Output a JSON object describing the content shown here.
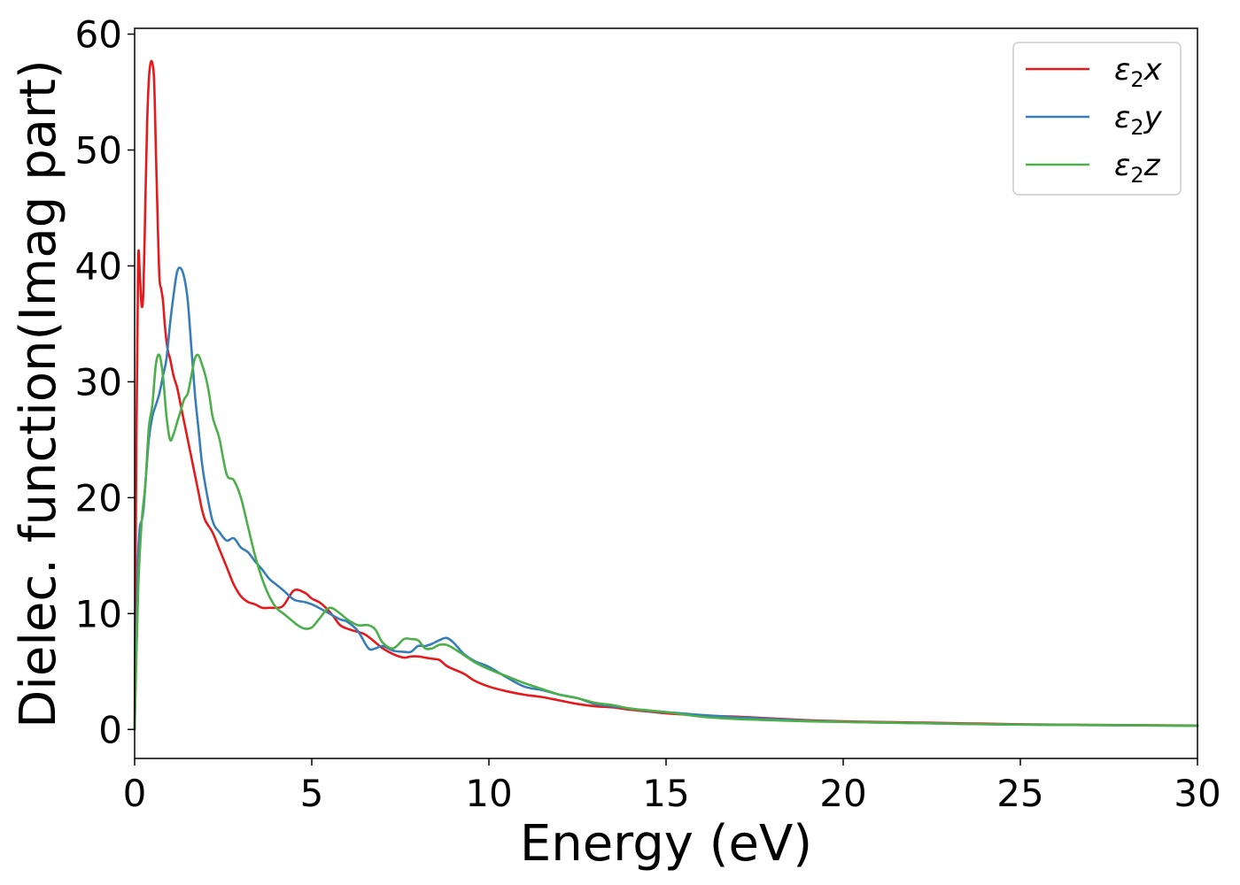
{
  "chart_data": {
    "type": "line",
    "title": "",
    "xlabel": "Energy (eV)",
    "ylabel": "Dielec. function(Imag part)",
    "xlim": [
      0,
      30
    ],
    "ylim": [
      -2.5,
      60.5
    ],
    "xticks": [
      0,
      5,
      10,
      15,
      20,
      25,
      30
    ],
    "yticks": [
      0,
      10,
      20,
      30,
      40,
      50,
      60
    ],
    "grid": false,
    "legend_position": "top-right",
    "series": [
      {
        "name": "ε2x",
        "legend_base": "ε",
        "legend_sub": "2",
        "legend_suffix": "x",
        "color": "#e41a1c",
        "x": [
          0,
          0.05,
          0.1,
          0.15,
          0.2,
          0.25,
          0.3,
          0.35,
          0.4,
          0.45,
          0.5,
          0.55,
          0.6,
          0.65,
          0.7,
          0.75,
          0.8,
          0.85,
          0.9,
          0.95,
          1.0,
          1.1,
          1.2,
          1.3,
          1.4,
          1.5,
          1.6,
          1.7,
          1.8,
          1.9,
          2.0,
          2.2,
          2.4,
          2.6,
          2.8,
          3.0,
          3.2,
          3.4,
          3.6,
          3.8,
          4.0,
          4.2,
          4.5,
          4.8,
          5.0,
          5.2,
          5.4,
          5.6,
          5.8,
          6.0,
          6.2,
          6.5,
          6.8,
          7.0,
          7.3,
          7.6,
          7.8,
          8.0,
          8.2,
          8.4,
          8.6,
          8.8,
          9.0,
          9.3,
          9.6,
          10.0,
          10.5,
          11.0,
          11.5,
          12.0,
          12.5,
          13.0,
          13.5,
          14.0,
          15.0,
          16.0,
          17.0,
          18.0,
          19.0,
          20.0,
          21.0,
          22.0,
          23.0,
          24.0,
          25.0,
          26.0,
          27.0,
          28.0,
          29.0,
          30.0
        ],
        "values": [
          0,
          25,
          40.5,
          39,
          36.5,
          38,
          45,
          52,
          56,
          57.5,
          57.5,
          56,
          50,
          44,
          39,
          38,
          37,
          35,
          33.5,
          32.5,
          32,
          30.5,
          29.5,
          28,
          26.5,
          25,
          23.5,
          22,
          20.5,
          19,
          18,
          17,
          15.5,
          14,
          12.5,
          11.5,
          11,
          10.8,
          10.5,
          10.5,
          10.5,
          10.7,
          12,
          11.8,
          11.3,
          11,
          10.5,
          9.8,
          9,
          8.7,
          8.5,
          8.2,
          7.5,
          7,
          6.5,
          6.2,
          6.3,
          6.3,
          6.2,
          6.1,
          6.0,
          5.5,
          5.2,
          4.8,
          4.2,
          3.7,
          3.3,
          3.0,
          2.8,
          2.5,
          2.2,
          2.0,
          1.9,
          1.7,
          1.4,
          1.2,
          1.1,
          0.95,
          0.8,
          0.7,
          0.65,
          0.6,
          0.55,
          0.5,
          0.45,
          0.42,
          0.4,
          0.38,
          0.36,
          0.34
        ]
      },
      {
        "name": "ε2y",
        "legend_base": "ε",
        "legend_sub": "2",
        "legend_suffix": "y",
        "color": "#377eb8",
        "x": [
          0,
          0.05,
          0.1,
          0.15,
          0.2,
          0.25,
          0.3,
          0.4,
          0.5,
          0.6,
          0.7,
          0.8,
          0.9,
          1.0,
          1.1,
          1.2,
          1.3,
          1.4,
          1.5,
          1.6,
          1.7,
          1.8,
          1.9,
          2.0,
          2.2,
          2.4,
          2.6,
          2.8,
          3.0,
          3.2,
          3.4,
          3.6,
          3.8,
          4.0,
          4.2,
          4.5,
          4.8,
          5.0,
          5.2,
          5.5,
          5.8,
          6.0,
          6.3,
          6.6,
          6.8,
          7.0,
          7.3,
          7.6,
          7.8,
          8.0,
          8.2,
          8.4,
          8.6,
          8.8,
          9.0,
          9.3,
          9.6,
          10.0,
          10.5,
          11.0,
          11.5,
          12.0,
          12.5,
          13.0,
          13.5,
          14.0,
          14.5,
          15.0,
          16.0,
          17.0,
          18.0,
          19.0,
          20.0,
          21.0,
          22.0,
          23.0,
          24.0,
          25.0,
          26.0,
          27.0,
          28.0,
          29.0,
          30.0
        ],
        "values": [
          0,
          8,
          15,
          17.5,
          18,
          19,
          21,
          25,
          27,
          28,
          29,
          30.5,
          32,
          35,
          37.5,
          39.5,
          39.8,
          39,
          37,
          33,
          29,
          26,
          23,
          21,
          18,
          17,
          16.3,
          16.5,
          15.7,
          15.3,
          14.5,
          13.8,
          13,
          12.5,
          12,
          11.2,
          11,
          10.8,
          10.5,
          10,
          9.5,
          9.3,
          8.5,
          7.0,
          7.0,
          7.2,
          6.8,
          6.7,
          6.7,
          7.2,
          7.2,
          7.4,
          7.7,
          7.9,
          7.5,
          6.5,
          5.9,
          5.4,
          4.5,
          3.7,
          3.4,
          3.0,
          2.7,
          2.2,
          2.0,
          1.8,
          1.6,
          1.5,
          1.25,
          1.05,
          0.9,
          0.75,
          0.65,
          0.6,
          0.55,
          0.5,
          0.45,
          0.42,
          0.4,
          0.38,
          0.36,
          0.34,
          0.32
        ]
      },
      {
        "name": "ε2z",
        "legend_base": "ε",
        "legend_sub": "2",
        "legend_suffix": "z",
        "color": "#4daf4a",
        "x": [
          0,
          0.1,
          0.2,
          0.3,
          0.4,
          0.5,
          0.6,
          0.7,
          0.8,
          0.9,
          1.0,
          1.1,
          1.2,
          1.3,
          1.4,
          1.5,
          1.6,
          1.7,
          1.8,
          1.9,
          2.0,
          2.1,
          2.2,
          2.3,
          2.4,
          2.6,
          2.8,
          3.0,
          3.2,
          3.4,
          3.6,
          3.8,
          4.0,
          4.2,
          4.4,
          4.6,
          4.8,
          5.0,
          5.2,
          5.5,
          5.8,
          6.0,
          6.3,
          6.6,
          6.8,
          7.0,
          7.3,
          7.6,
          7.8,
          8.0,
          8.2,
          8.4,
          8.6,
          8.8,
          9.0,
          9.3,
          9.6,
          10.0,
          10.5,
          11.0,
          11.5,
          12.0,
          12.5,
          13.0,
          13.5,
          14.0,
          15.0,
          16.0,
          17.0,
          18.0,
          19.0,
          20.0,
          21.0,
          22.0,
          23.0,
          24.0,
          25.0,
          26.0,
          27.0,
          28.0,
          29.0,
          30.0
        ],
        "values": [
          0,
          12,
          18,
          21,
          26,
          28,
          31.5,
          32.3,
          30.5,
          27,
          25,
          25.5,
          26.5,
          27.5,
          28.5,
          29,
          30.5,
          32,
          32.3,
          31.5,
          30.5,
          29,
          27,
          26,
          25,
          22,
          21.5,
          20,
          17.5,
          15,
          13,
          11.5,
          10.5,
          10,
          9.5,
          9,
          8.7,
          8.8,
          9.5,
          10.5,
          10,
          9.5,
          9.0,
          9.0,
          8.6,
          7.5,
          7.0,
          7.8,
          7.8,
          7.7,
          7.0,
          7.0,
          7.3,
          7.3,
          7.0,
          6.4,
          5.8,
          5.2,
          4.6,
          4.0,
          3.5,
          3.0,
          2.7,
          2.3,
          2.1,
          1.8,
          1.5,
          1.1,
          0.9,
          0.8,
          0.7,
          0.65,
          0.6,
          0.55,
          0.5,
          0.45,
          0.42,
          0.4,
          0.38,
          0.36,
          0.34,
          0.32
        ]
      }
    ]
  }
}
